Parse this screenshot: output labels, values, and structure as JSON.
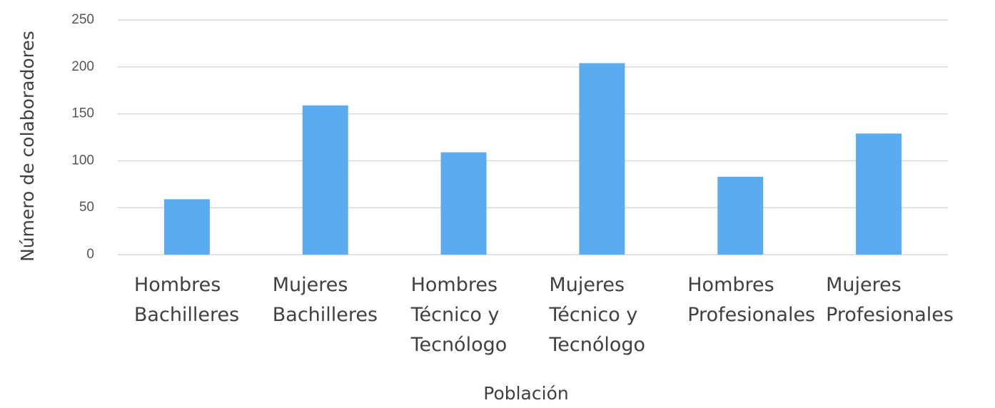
{
  "chart_data": {
    "type": "bar",
    "x_label": "Población",
    "y_label": "Número de colaboradores",
    "categories": [
      "Hombres\nBachilleres",
      "Mujeres\nBachilleres",
      "Hombres\nTécnico y\nTecnólogo",
      "Mujeres\nTécnico y\nTecnólogo",
      "Hombres\nProfesionales",
      "Mujeres\nProfesionales"
    ],
    "values": [
      59,
      159,
      109,
      204,
      83,
      129
    ],
    "color": "#5aabf0",
    "ylim": [
      0,
      250
    ],
    "yticks": [
      0,
      50,
      100,
      150,
      200,
      250
    ],
    "grid": true
  }
}
